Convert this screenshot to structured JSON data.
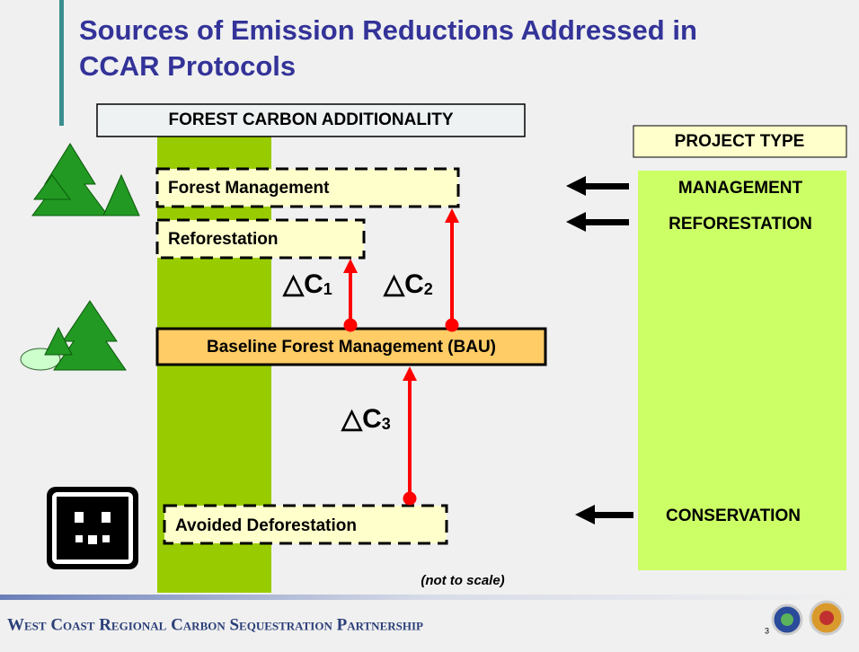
{
  "header": {
    "title_line1": "Sources of Emission Reductions Addressed in",
    "title_line2": "CCAR Protocols"
  },
  "diagram": {
    "column_label": "FOREST CARBON ADDITIONALITY",
    "project_type_label": "PROJECT TYPE",
    "boxes": [
      "Forest Management",
      "Reforestation",
      "Baseline Forest Management (BAU)",
      "Avoided Deforestation"
    ],
    "project_types": [
      "MANAGEMENT",
      "REFORESTATION",
      "CONSERVATION"
    ],
    "deltas": [
      {
        "symbol": "△C",
        "sub": "1"
      },
      {
        "symbol": "△C",
        "sub": "2"
      },
      {
        "symbol": "△C",
        "sub": "3"
      }
    ],
    "note": "(not to scale)"
  },
  "footer": {
    "text": "West Coast Regional Carbon Sequestration Partnership",
    "page": "3"
  }
}
